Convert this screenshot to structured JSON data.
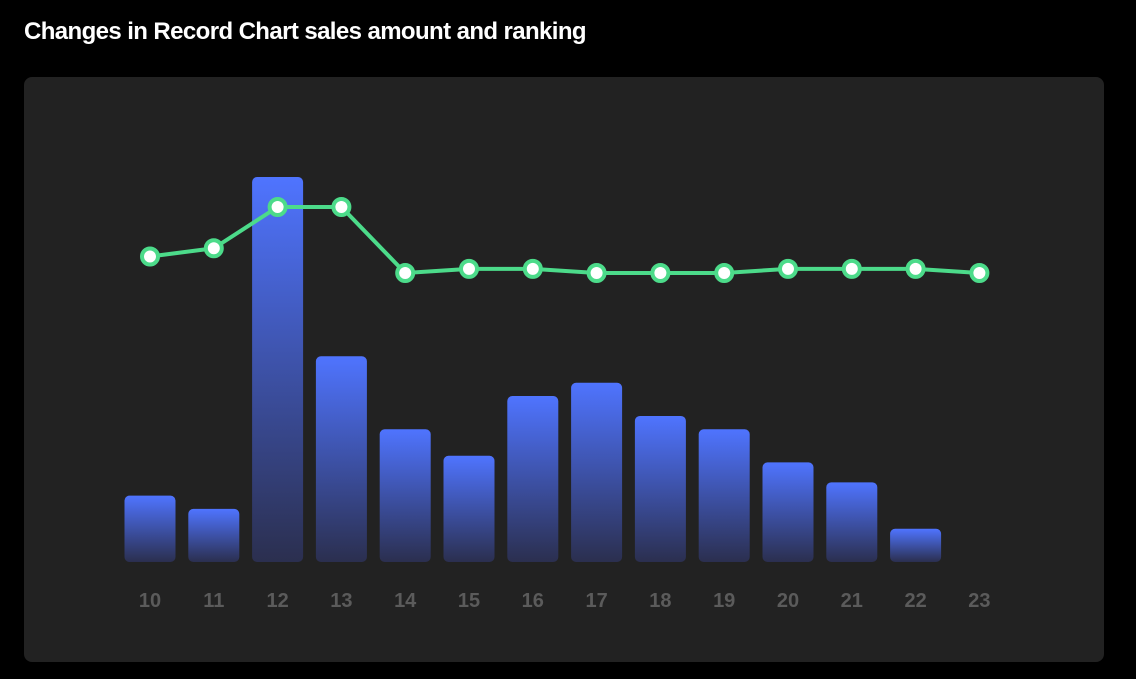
{
  "title": "Changes in Record Chart sales amount and ranking",
  "colors": {
    "background": "#000000",
    "panel": "#222222",
    "bar_top": "#4f74ff",
    "bar_bottom": "#2b2f4f",
    "line": "#4cdb8a",
    "point_fill": "#ffffff",
    "tick_label": "#5b5b5b"
  },
  "chart_data": {
    "type": "bar",
    "categories": [
      "10",
      "11",
      "12",
      "13",
      "14",
      "15",
      "16",
      "17",
      "18",
      "19",
      "20",
      "21",
      "22",
      "23"
    ],
    "series": [
      {
        "type": "bar",
        "values": [
          10,
          8,
          58,
          31,
          20,
          16,
          25,
          27,
          22,
          20,
          15,
          12,
          5,
          null
        ]
      },
      {
        "type": "line",
        "values": [
          46,
          48,
          58,
          58,
          42,
          43,
          43,
          42,
          42,
          42,
          43,
          43,
          43,
          42
        ]
      }
    ],
    "ylim": [
      0,
      58
    ],
    "grid": false,
    "legend": "none"
  }
}
